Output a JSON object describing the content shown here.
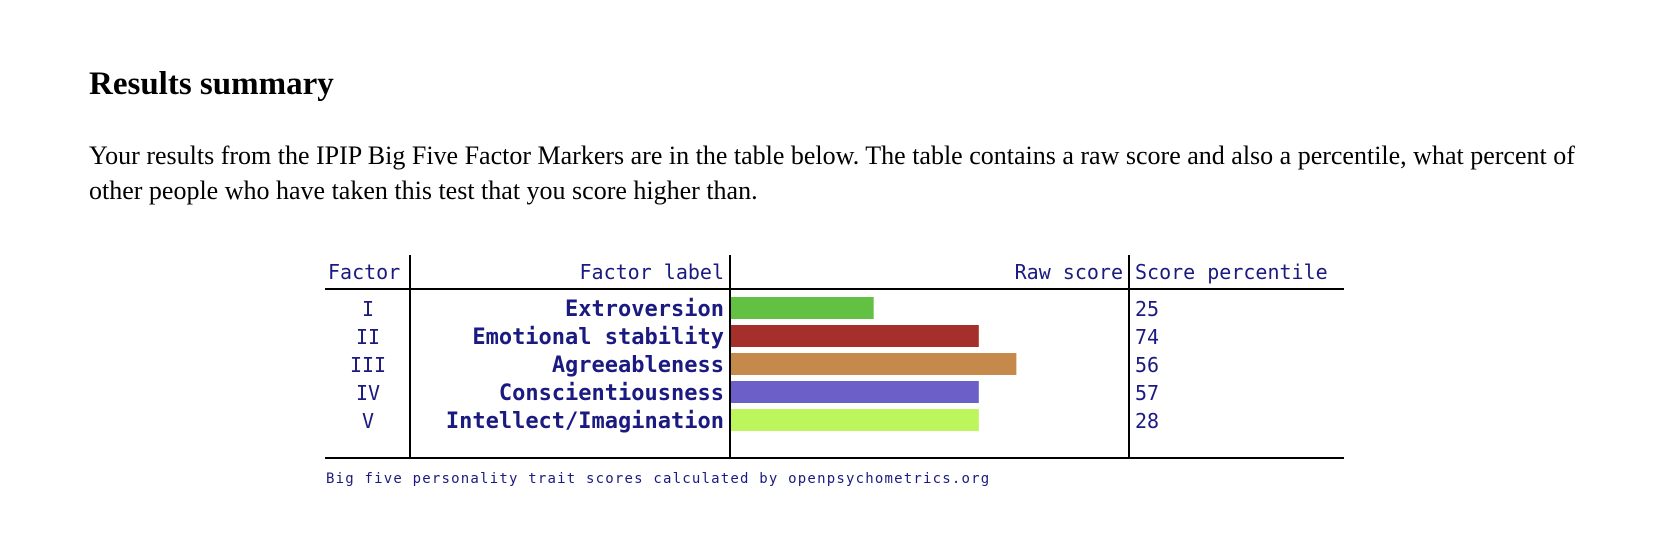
{
  "page": {
    "heading": "Results summary",
    "intro": "Your results from the IPIP Big Five Factor Markers are in the table below. The table contains a raw score and also a percentile, what percent of other people who have taken this test that you score higher than."
  },
  "colors": {
    "text": "#1a1a80",
    "rule": "#000000"
  },
  "chart_data": {
    "type": "bar",
    "orientation": "horizontal",
    "headers": {
      "factor": "Factor",
      "label": "Factor label",
      "raw": "Raw score",
      "percentile": "Score percentile"
    },
    "rows": [
      {
        "factor": "I",
        "label": "Extroversion",
        "raw_score": 19,
        "percentile": "25",
        "color": "#62c143"
      },
      {
        "factor": "II",
        "label": "Emotional stability",
        "raw_score": 33,
        "percentile": "74",
        "color": "#a5302b"
      },
      {
        "factor": "III",
        "label": "Agreeableness",
        "raw_score": 38,
        "percentile": "56",
        "color": "#c58a4b"
      },
      {
        "factor": "IV",
        "label": "Conscientiousness",
        "raw_score": 33,
        "percentile": "57",
        "color": "#6c60c8"
      },
      {
        "factor": "V",
        "label": "Intellect/Imagination",
        "raw_score": 33,
        "percentile": "28",
        "color": "#bdf55c"
      }
    ],
    "raw_score_range": [
      0,
      53
    ],
    "footer": "Big five personality trait scores calculated by openpsychometrics.org"
  }
}
